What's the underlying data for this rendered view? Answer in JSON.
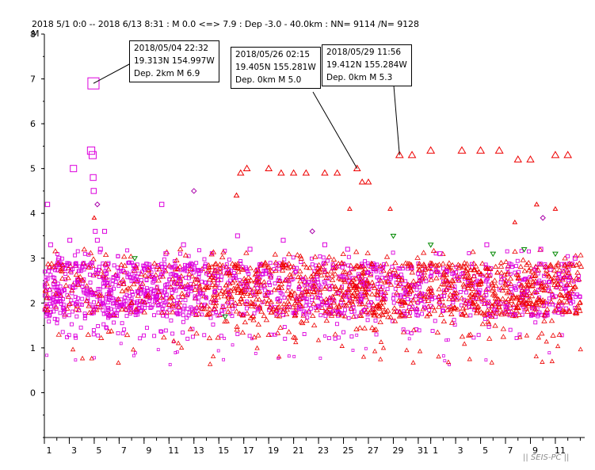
{
  "header": {
    "text": "2018 5/1 0:0 -- 2018 6/13 8:31  : M 0.0 <=> 7.9   :  Dep -3.0 - 40.0km : NN= 9114 /N= 9128"
  },
  "watermark": "|| SEIS-PC ||",
  "colors": {
    "triangle_up": "#ee0000",
    "square": "#dd00dd",
    "diamond": "#aa00aa",
    "triangle_down": "#008800",
    "axis": "#000000"
  },
  "callouts": [
    {
      "line1": "2018/05/04  22:32",
      "line2": "19.313N   154.997W",
      "line3": "Dep. 2km     M 6.9"
    },
    {
      "line1": "2018/05/26  02:15",
      "line2": "19.405N   155.281W",
      "line3": "Dep. 0km     M 5.0"
    },
    {
      "line1": "2018/05/29  11:56",
      "line2": "19.412N   155.284W",
      "line3": "Dep. 0km     M 5.3"
    }
  ],
  "chart_data": {
    "type": "scatter",
    "title": "",
    "ylabel": "M",
    "xlabel": "",
    "ylim": [
      -1,
      8
    ],
    "yticks": [
      "0",
      "1",
      "2",
      "3",
      "4",
      "5",
      "6",
      "7",
      "8"
    ],
    "xlim": [
      "2018-05-01",
      "2018-06-13"
    ],
    "xticks": [
      {
        "date": "2018-05-01",
        "label": "1"
      },
      {
        "date": "2018-05-03",
        "label": "3"
      },
      {
        "date": "2018-05-05",
        "label": "5"
      },
      {
        "date": "2018-05-07",
        "label": "7"
      },
      {
        "date": "2018-05-09",
        "label": "9"
      },
      {
        "date": "2018-05-11",
        "label": "11"
      },
      {
        "date": "2018-05-13",
        "label": "13"
      },
      {
        "date": "2018-05-15",
        "label": "15"
      },
      {
        "date": "2018-05-17",
        "label": "17"
      },
      {
        "date": "2018-05-19",
        "label": "19"
      },
      {
        "date": "2018-05-21",
        "label": "21"
      },
      {
        "date": "2018-05-23",
        "label": "23"
      },
      {
        "date": "2018-05-25",
        "label": "25"
      },
      {
        "date": "2018-05-27",
        "label": "27"
      },
      {
        "date": "2018-05-29",
        "label": "29"
      },
      {
        "date": "2018-05-31",
        "label": "31"
      },
      {
        "date": "2018-06-01",
        "label": "1"
      },
      {
        "date": "2018-06-03",
        "label": "3"
      },
      {
        "date": "2018-06-05",
        "label": "5"
      },
      {
        "date": "2018-06-07",
        "label": "7"
      },
      {
        "date": "2018-06-09",
        "label": "9"
      },
      {
        "date": "2018-06-11",
        "label": "11"
      }
    ],
    "series": [
      {
        "marker": "square",
        "color": "#dd00dd",
        "points": [
          {
            "x": "2018-05-01 06:00",
            "y": 4.2
          },
          {
            "x": "2018-05-01 12:00",
            "y": 3.3
          },
          {
            "x": "2018-05-02 04:00",
            "y": 3.0
          },
          {
            "x": "2018-05-03 01:00",
            "y": 3.4
          },
          {
            "x": "2018-05-03 08:00",
            "y": 5.0
          },
          {
            "x": "2018-05-04 18:00",
            "y": 5.4
          },
          {
            "x": "2018-05-04 21:00",
            "y": 5.3
          },
          {
            "x": "2018-05-04 22:32",
            "y": 6.9
          },
          {
            "x": "2018-05-04 22:00",
            "y": 4.8
          },
          {
            "x": "2018-05-04 23:00",
            "y": 4.5
          },
          {
            "x": "2018-05-05 02:00",
            "y": 3.6
          },
          {
            "x": "2018-05-05 06:00",
            "y": 3.4
          },
          {
            "x": "2018-05-05 12:00",
            "y": 3.2
          },
          {
            "x": "2018-05-05 20:00",
            "y": 3.6
          },
          {
            "x": "2018-05-10 10:00",
            "y": 4.2
          },
          {
            "x": "2018-05-10 18:00",
            "y": 3.1
          },
          {
            "x": "2018-05-12 04:00",
            "y": 3.3
          },
          {
            "x": "2018-05-16 12:00",
            "y": 3.5
          },
          {
            "x": "2018-05-17 12:00",
            "y": 3.2
          },
          {
            "x": "2018-05-20 04:00",
            "y": 3.4
          },
          {
            "x": "2018-05-23 12:00",
            "y": 3.3
          },
          {
            "x": "2018-05-25 08:00",
            "y": 3.2
          },
          {
            "x": "2018-06-01 18:00",
            "y": 3.1
          },
          {
            "x": "2018-06-05 12:00",
            "y": 3.3
          },
          {
            "x": "2018-06-09 20:00",
            "y": 3.2
          },
          {
            "x": "2018-06-12 14:00",
            "y": 3.0
          }
        ]
      },
      {
        "marker": "triangle-up",
        "color": "#ee0000",
        "points": [
          {
            "x": "2018-05-16 10:00",
            "y": 4.4
          },
          {
            "x": "2018-05-16 18:00",
            "y": 4.9
          },
          {
            "x": "2018-05-17 06:00",
            "y": 5.0
          },
          {
            "x": "2018-05-19 00:00",
            "y": 5.0
          },
          {
            "x": "2018-05-20 00:00",
            "y": 4.9
          },
          {
            "x": "2018-05-21 00:00",
            "y": 4.9
          },
          {
            "x": "2018-05-22 00:00",
            "y": 4.9
          },
          {
            "x": "2018-05-23 12:00",
            "y": 4.9
          },
          {
            "x": "2018-05-24 12:00",
            "y": 4.9
          },
          {
            "x": "2018-05-26 02:15",
            "y": 5.0
          },
          {
            "x": "2018-05-26 12:00",
            "y": 4.7
          },
          {
            "x": "2018-05-27 00:00",
            "y": 4.7
          },
          {
            "x": "2018-05-29 11:56",
            "y": 5.3
          },
          {
            "x": "2018-05-30 12:00",
            "y": 5.3
          },
          {
            "x": "2018-06-01 00:00",
            "y": 5.4
          },
          {
            "x": "2018-06-03 12:00",
            "y": 5.4
          },
          {
            "x": "2018-06-05 00:00",
            "y": 5.4
          },
          {
            "x": "2018-06-06 12:00",
            "y": 5.4
          },
          {
            "x": "2018-06-08 00:00",
            "y": 5.2
          },
          {
            "x": "2018-06-09 00:00",
            "y": 5.2
          },
          {
            "x": "2018-06-11 00:00",
            "y": 5.3
          },
          {
            "x": "2018-06-12 00:00",
            "y": 5.3
          },
          {
            "x": "2018-05-25 12:00",
            "y": 4.1
          },
          {
            "x": "2018-05-28 18:00",
            "y": 4.1
          },
          {
            "x": "2018-06-09 12:00",
            "y": 4.2
          },
          {
            "x": "2018-06-11 00:00",
            "y": 4.1
          },
          {
            "x": "2018-06-07 18:00",
            "y": 3.8
          },
          {
            "x": "2018-05-05 00:00",
            "y": 3.9
          }
        ]
      },
      {
        "marker": "diamond",
        "color": "#aa00aa",
        "points": [
          {
            "x": "2018-05-05 06:00",
            "y": 4.2
          },
          {
            "x": "2018-05-13 00:00",
            "y": 4.5
          },
          {
            "x": "2018-05-22 12:00",
            "y": 3.6
          },
          {
            "x": "2018-06-10 00:00",
            "y": 3.9
          }
        ]
      },
      {
        "marker": "triangle-down",
        "color": "#008800",
        "points": [
          {
            "x": "2018-05-08 06:00",
            "y": 3.0
          },
          {
            "x": "2018-05-29 00:00",
            "y": 3.5
          },
          {
            "x": "2018-06-01 00:00",
            "y": 3.3
          },
          {
            "x": "2018-06-06 00:00",
            "y": 3.1
          },
          {
            "x": "2018-06-08 12:00",
            "y": 3.2
          },
          {
            "x": "2018-06-11 00:00",
            "y": 3.1
          },
          {
            "x": "2018-05-15 12:00",
            "y": 1.7
          }
        ]
      }
    ],
    "dense_band": {
      "description_note": "",
      "y_range": [
        1.2,
        3.2
      ],
      "core_range": [
        1.7,
        2.9
      ]
    }
  }
}
